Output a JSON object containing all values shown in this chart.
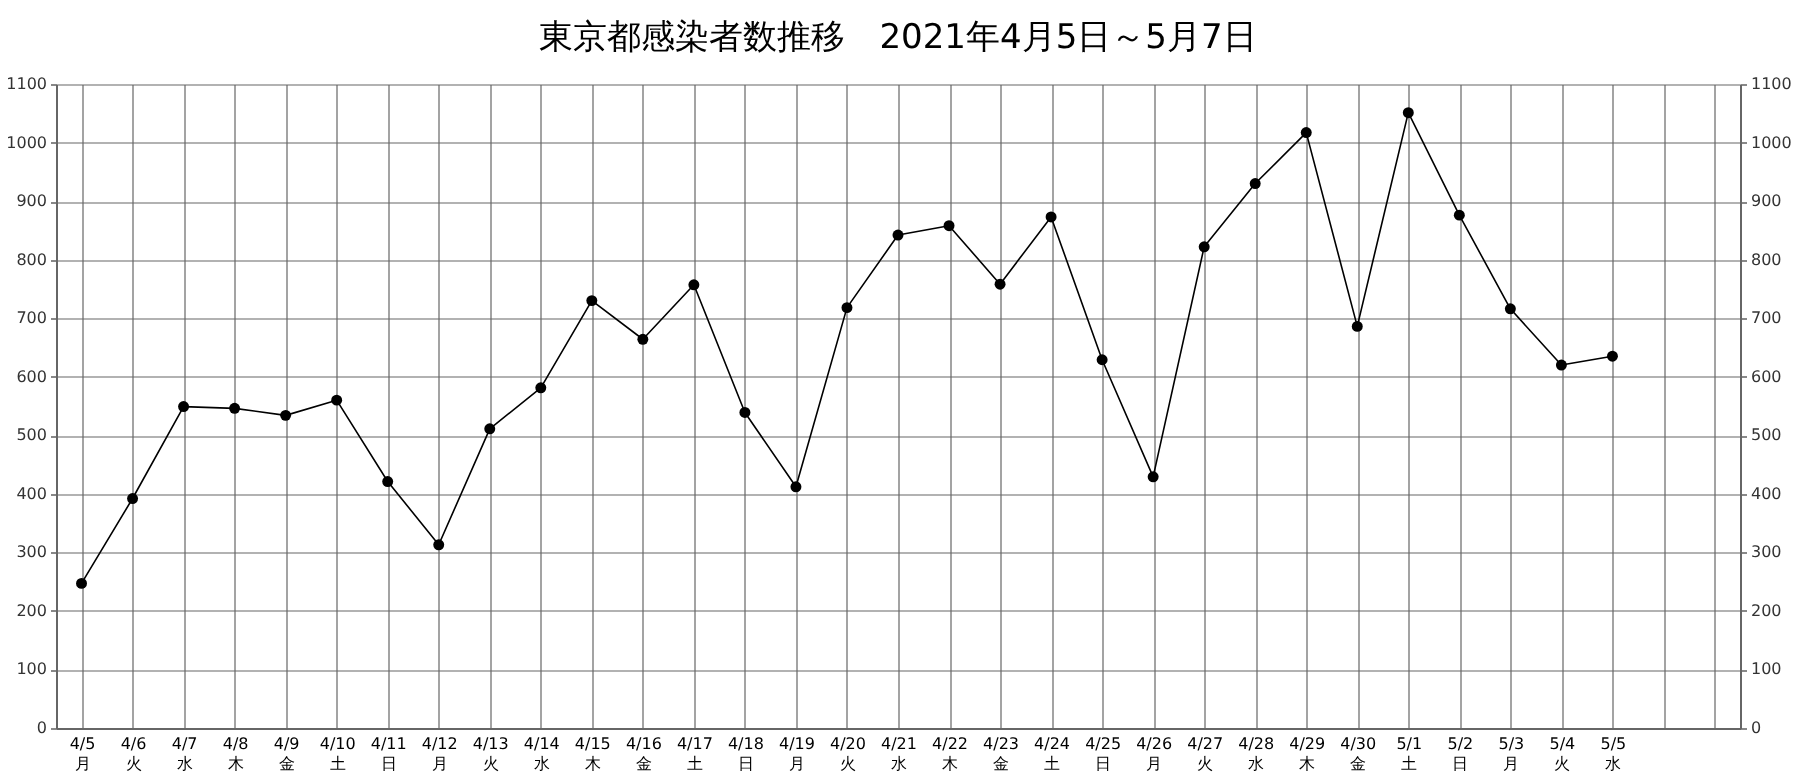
{
  "chart_data": {
    "type": "line",
    "title": "東京都感染者数推移　2021年4月5日～5月7日",
    "categories": [
      "4/5\n月",
      "4/6\n火",
      "4/7\n水",
      "4/8\n木",
      "4/9\n金",
      "4/10\n土",
      "4/11\n日",
      "4/12\n月",
      "4/13\n火",
      "4/14\n水",
      "4/15\n木",
      "4/16\n金",
      "4/17\n土",
      "4/18\n日",
      "4/19\n月",
      "4/20\n火",
      "4/21\n水",
      "4/22\n木",
      "4/23\n金",
      "4/24\n土",
      "4/25\n日",
      "4/26\n月",
      "4/27\n火",
      "4/28\n水",
      "4/29\n木",
      "4/30\n金",
      "5/1\n土",
      "5/2\n日",
      "5/3\n月",
      "5/4\n火",
      "5/5\n水",
      null,
      null
    ],
    "series": [
      {
        "color": "#000000",
        "values": [
          247,
          392,
          549,
          546,
          534,
          560,
          421,
          313,
          511,
          581,
          730,
          664,
          757,
          539,
          412,
          718,
          842,
          858,
          758,
          873,
          629,
          429,
          822,
          930,
          1017,
          686,
          1051,
          876,
          716,
          620,
          635,
          null,
          null
        ]
      }
    ],
    "ylim": [
      0,
      1100
    ],
    "yticks": [
      0,
      100,
      200,
      300,
      400,
      500,
      600,
      700,
      800,
      900,
      1000,
      1100
    ],
    "y2lim": [
      0,
      1100
    ],
    "y2ticks": [
      0,
      100,
      200,
      300,
      400,
      500,
      600,
      700,
      800,
      900,
      1000,
      1100
    ],
    "grid": true,
    "marker": "circle",
    "line_style": "solid"
  }
}
